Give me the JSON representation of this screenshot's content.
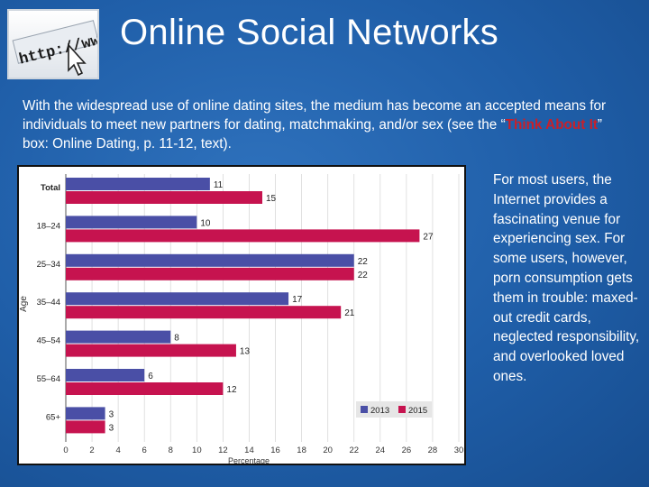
{
  "slide": {
    "title": "Online Social Networks",
    "logo_text": "http://www",
    "intro_before": "With the widespread use of online dating sites, the medium has become an accepted means for individuals to meet new partners for dating, matchmaking, and/or sex (see the “",
    "intro_highlight": "Think About It",
    "intro_after": "” box: Online Dating, p. 11-12, text).",
    "side_text": "For most users, the Internet provides a fascinating venue for experiencing sex. For some users, however, porn consumption gets them in trouble: maxed-out credit cards, neglected responsibility, and overlooked loved ones."
  },
  "chart_data": {
    "type": "bar",
    "orientation": "horizontal",
    "categories": [
      "Total",
      "18–24",
      "25–34",
      "35–44",
      "45–54",
      "55–64",
      "65+"
    ],
    "series": [
      {
        "name": "2013",
        "values": [
          11,
          10,
          22,
          17,
          8,
          6,
          3
        ],
        "color": "#4a4fa6"
      },
      {
        "name": "2015",
        "values": [
          15,
          27,
          22,
          21,
          13,
          12,
          3
        ],
        "color": "#c6134f"
      }
    ],
    "xlabel": "Percentage",
    "ylabel": "Age",
    "xlim": [
      0,
      30
    ],
    "xticks": [
      0,
      2,
      4,
      6,
      8,
      10,
      12,
      14,
      16,
      18,
      20,
      22,
      24,
      26,
      28,
      30
    ],
    "grid": true,
    "legend_position": "bottom-right"
  }
}
